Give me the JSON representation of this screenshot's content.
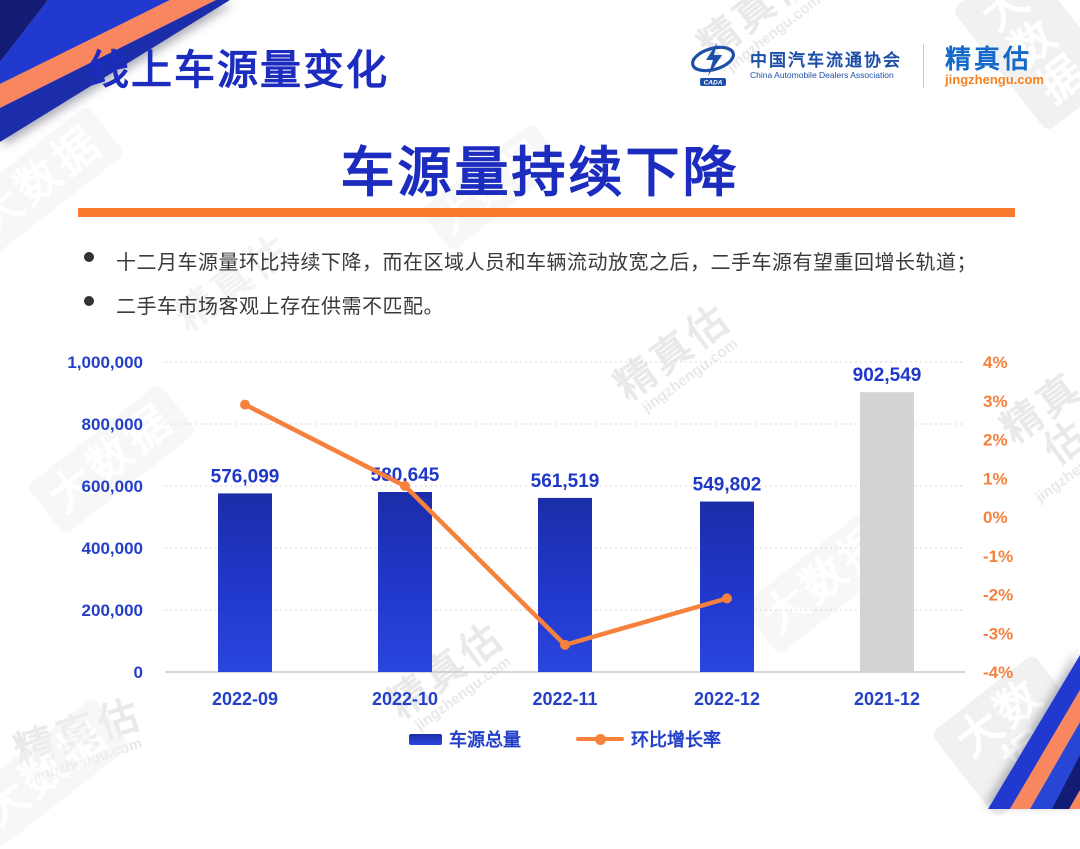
{
  "header": {
    "title": "线上车源量变化",
    "cada": {
      "logo_text": "CADA",
      "name_cn": "中国汽车流通协会",
      "name_en": "China Automobile Dealers Association"
    },
    "jingzhengu": {
      "name": "精真估",
      "domain": "jingzhengu.com"
    }
  },
  "main": {
    "title": "车源量持续下降",
    "bullets": [
      "十二月车源量环比持续下降，而在区域人员和车辆流动放宽之后，二手车源有望重回增长轨道；",
      "二手车市场客观上存在供需不匹配。"
    ]
  },
  "watermarks": {
    "brand": "精真估",
    "domain": "jingzhengu.com",
    "bigdata": "大数据"
  },
  "colors": {
    "title_blue": "#1b2cbe",
    "label_blue": "#2440c8",
    "bar_blue_top": "#1b2da8",
    "bar_blue_bottom": "#2a46de",
    "bar_gray": "#d3d3d3",
    "line_orange": "#f5813d",
    "divider_orange": "#f97b2d",
    "stripe_salmon": "#f8875f",
    "stripe_navy": "#131c74",
    "stripe_blue": "#2239cf"
  },
  "chart_data": {
    "type": "bar",
    "title": "",
    "xlabel": "",
    "ylabel_left": "",
    "ylabel_right": "",
    "categories": [
      "2022-09",
      "2022-10",
      "2022-11",
      "2022-12",
      "2021-12"
    ],
    "series": [
      {
        "name": "车源总量",
        "type": "bar",
        "axis": "left",
        "values": [
          576099,
          580645,
          561519,
          549802,
          902549
        ],
        "labels": [
          "576,099",
          "580,645",
          "561,519",
          "549,802",
          "902,549"
        ],
        "colors": [
          "blue",
          "blue",
          "blue",
          "blue",
          "gray"
        ]
      },
      {
        "name": "环比增长率",
        "type": "line",
        "axis": "right",
        "values": [
          2.9,
          0.8,
          -3.3,
          -2.1,
          null
        ]
      }
    ],
    "left_axis": {
      "min": 0,
      "max": 1000000,
      "step": 200000,
      "labels": [
        "0",
        "200,000",
        "400,000",
        "600,000",
        "800,000",
        "1,000,000"
      ]
    },
    "right_axis": {
      "min": -4,
      "max": 4,
      "step": 1,
      "labels": [
        "-4%",
        "-3%",
        "-2%",
        "-1%",
        "0%",
        "1%",
        "2%",
        "3%",
        "4%"
      ]
    },
    "grid": "horizontal-dotted",
    "legend_position": "bottom"
  }
}
